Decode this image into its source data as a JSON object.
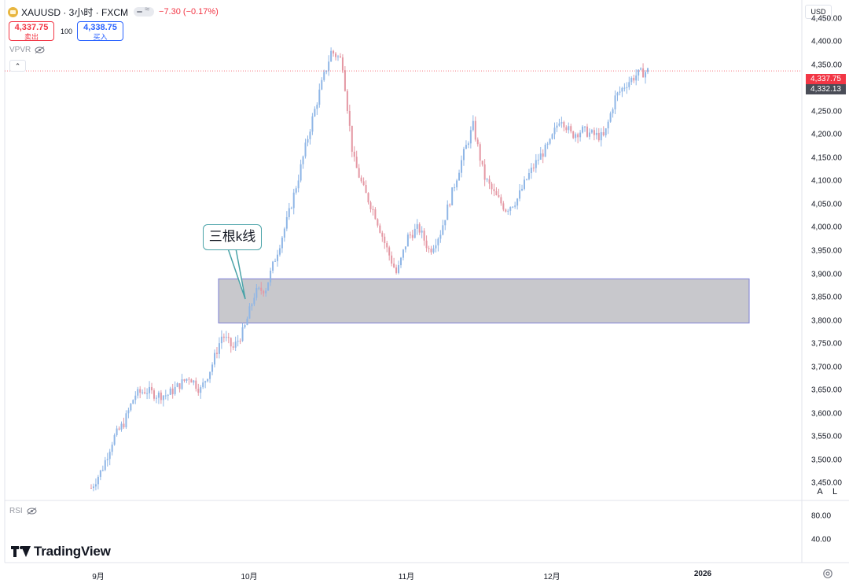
{
  "header": {
    "symbol_title": "XAUUSD · 3小时 · FXCM",
    "price_change": "−7.30 (−0.17%)",
    "sell_price": "4,337.75",
    "sell_label": "卖出",
    "buy_price": "4,338.75",
    "buy_label": "买入",
    "spread": "100",
    "indicator_vpvr": "VPVR",
    "currency": "USD"
  },
  "price_axis": {
    "labels": [
      "4,450.00",
      "4,400.00",
      "4,350.00",
      "4,300.00",
      "4,250.00",
      "4,200.00",
      "4,150.00",
      "4,100.00",
      "4,050.00",
      "4,000.00",
      "3,950.00",
      "3,900.00",
      "3,850.00",
      "3,800.00",
      "3,750.00",
      "3,700.00",
      "3,650.00",
      "3,600.00",
      "3,550.00",
      "3,500.00",
      "3,450.00"
    ],
    "current_price_tag": "4,337.75",
    "cursor_price_tag": "4,332.13",
    "scale_auto": "A",
    "scale_log": "L"
  },
  "rsi_panel": {
    "label": "RSI",
    "axis": [
      "80.00",
      "40.00"
    ]
  },
  "time_axis": [
    "9月",
    "10月",
    "11月",
    "12月",
    "2026"
  ],
  "brand": "TradingView",
  "annotation": {
    "callout_text": "三根k线"
  },
  "colors": {
    "up": "#8fb6e6",
    "down": "#e497a3",
    "zone_fill": "#c8c8cc",
    "zone_border": "#7d7fd4",
    "callout_border": "#4aa3a8",
    "current_price": "#f23645"
  },
  "chart_data": {
    "type": "candlestick",
    "symbol": "XAUUSD",
    "timeframe": "3小时",
    "ylim": [
      3440,
      4460
    ],
    "x_ticks": [
      "9月",
      "10月",
      "11月",
      "12月",
      "2026"
    ],
    "series": [
      {
        "values": [
          {
            "t": "Aug 29",
            "close": 3440
          },
          {
            "t": "Sep 1",
            "close": 3480
          },
          {
            "t": "Sep 3",
            "close": 3545
          },
          {
            "t": "Sep 5",
            "close": 3580
          },
          {
            "t": "Sep 8",
            "close": 3640
          },
          {
            "t": "Sep 10",
            "close": 3650
          },
          {
            "t": "Sep 12",
            "close": 3640
          },
          {
            "t": "Sep 15",
            "close": 3640
          },
          {
            "t": "Sep 17",
            "close": 3660
          },
          {
            "t": "Sep 19",
            "close": 3680
          },
          {
            "t": "Sep 22",
            "close": 3650
          },
          {
            "t": "Sep 24",
            "close": 3700
          },
          {
            "t": "Sep 26",
            "close": 3770
          },
          {
            "t": "Sep 29",
            "close": 3740
          },
          {
            "t": "Oct 1",
            "close": 3780
          },
          {
            "t": "Oct 3",
            "close": 3860
          },
          {
            "t": "Oct 6",
            "close": 3870
          },
          {
            "t": "Oct 8",
            "close": 3945
          },
          {
            "t": "Oct 10",
            "close": 4020
          },
          {
            "t": "Oct 13",
            "close": 4110
          },
          {
            "t": "Oct 15",
            "close": 4210
          },
          {
            "t": "Oct 16",
            "close": 4300
          },
          {
            "t": "Oct 17",
            "close": 4380
          },
          {
            "t": "Oct 20",
            "close": 4360
          },
          {
            "t": "Oct 21",
            "close": 4150
          },
          {
            "t": "Oct 22",
            "close": 4080
          },
          {
            "t": "Oct 24",
            "close": 4030
          },
          {
            "t": "Oct 27",
            "close": 3960
          },
          {
            "t": "Oct 28",
            "close": 3900
          },
          {
            "t": "Oct 30",
            "close": 3980
          },
          {
            "t": "Nov 3",
            "close": 4000
          },
          {
            "t": "Nov 5",
            "close": 3950
          },
          {
            "t": "Nov 7",
            "close": 3990
          },
          {
            "t": "Nov 10",
            "close": 4070
          },
          {
            "t": "Nov 12",
            "close": 4150
          },
          {
            "t": "Nov 13",
            "close": 4220
          },
          {
            "t": "Nov 14",
            "close": 4110
          },
          {
            "t": "Nov 17",
            "close": 4070
          },
          {
            "t": "Nov 19",
            "close": 4040
          },
          {
            "t": "Nov 21",
            "close": 4060
          },
          {
            "t": "Nov 24",
            "close": 4110
          },
          {
            "t": "Nov 26",
            "close": 4150
          },
          {
            "t": "Nov 28",
            "close": 4180
          },
          {
            "t": "Dec 1",
            "close": 4240
          },
          {
            "t": "Dec 3",
            "close": 4200
          },
          {
            "t": "Dec 5",
            "close": 4210
          },
          {
            "t": "Dec 8",
            "close": 4200
          },
          {
            "t": "Dec 10",
            "close": 4195
          },
          {
            "t": "Dec 12",
            "close": 4280
          },
          {
            "t": "Dec 15",
            "close": 4310
          },
          {
            "t": "Dec 17",
            "close": 4330
          },
          {
            "t": "Dec 19",
            "close": 4337.75
          }
        ]
      }
    ],
    "support_zone": {
      "from": 3795,
      "to": 3890
    },
    "current_price": 4337.75,
    "cursor_price": 4332.13
  }
}
